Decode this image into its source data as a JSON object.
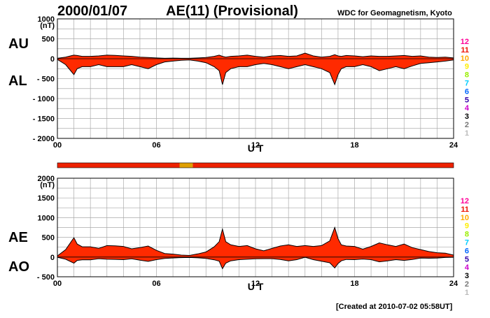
{
  "header": {
    "date": "2000/01/07",
    "title": "AE(11) (Provisional)",
    "source": "WDC for Geomagnetism, Kyoto"
  },
  "footer": {
    "created": "[Created at 2010-07-02 05:58UT]"
  },
  "colors": {
    "fill": "#ff2a00",
    "line": "#000000",
    "grid": "#aaaaaa",
    "bar_main": "#ee2200",
    "bar_alt": "#e0a000"
  },
  "station_legend": [
    {
      "label": "12",
      "color": "#ff0099"
    },
    {
      "label": "11",
      "color": "#ee1100"
    },
    {
      "label": "10",
      "color": "#ffaa00"
    },
    {
      "label": "9",
      "color": "#ffee00"
    },
    {
      "label": "8",
      "color": "#99ee00"
    },
    {
      "label": "7",
      "color": "#00ccff"
    },
    {
      "label": "6",
      "color": "#0066ff"
    },
    {
      "label": "5",
      "color": "#3300aa"
    },
    {
      "label": "4",
      "color": "#cc00cc"
    },
    {
      "label": "3",
      "color": "#000000"
    },
    {
      "label": "2",
      "color": "#777777"
    },
    {
      "label": "1",
      "color": "#bbbbbb"
    }
  ],
  "station_bar": {
    "segments": [
      {
        "from": 0,
        "to": 7.4,
        "stations": 11
      },
      {
        "from": 7.4,
        "to": 8.2,
        "stations": 10
      },
      {
        "from": 8.2,
        "to": 24,
        "stations": 11
      }
    ]
  },
  "chart_data": [
    {
      "type": "area",
      "ylabel": "(nT)",
      "series_labels_left": [
        "AU",
        "AL"
      ],
      "xlabel": "U T",
      "xlim": [
        0,
        24
      ],
      "ylim": [
        -2000,
        1000
      ],
      "yticks": [
        1000,
        500,
        0,
        -500,
        -1000,
        -1500,
        -2000
      ],
      "ytick_labels": [
        "1000",
        "500",
        "0",
        "- 500",
        "- 1000",
        "- 1500",
        "- 2000"
      ],
      "xticks": [
        0,
        6,
        12,
        18,
        24
      ],
      "xtick_labels": [
        "00",
        "06",
        "12",
        "18",
        "24"
      ],
      "x": [
        0,
        0.5,
        0.9,
        1.0,
        1.2,
        1.5,
        2,
        2.5,
        3,
        3.5,
        4,
        4.5,
        5,
        5.5,
        6,
        6.5,
        7,
        7.5,
        8,
        8.5,
        9,
        9.5,
        9.8,
        10,
        10.2,
        10.5,
        11,
        11.5,
        12,
        12.5,
        13,
        13.5,
        14,
        14.5,
        15,
        15.5,
        16,
        16.5,
        16.8,
        17,
        17.2,
        17.5,
        18,
        18.5,
        19,
        19.5,
        20,
        20.5,
        21,
        21.5,
        22,
        22.5,
        23,
        23.5,
        24
      ],
      "series": [
        {
          "name": "AU",
          "values": [
            10,
            40,
            80,
            90,
            80,
            60,
            60,
            70,
            90,
            85,
            70,
            60,
            40,
            30,
            20,
            10,
            15,
            10,
            10,
            20,
            30,
            60,
            90,
            60,
            40,
            60,
            70,
            90,
            60,
            40,
            70,
            80,
            60,
            70,
            140,
            70,
            40,
            60,
            100,
            70,
            60,
            80,
            70,
            50,
            70,
            60,
            60,
            70,
            80,
            60,
            70,
            40,
            30,
            40,
            20
          ]
        },
        {
          "name": "AL",
          "values": [
            -20,
            -150,
            -350,
            -400,
            -250,
            -200,
            -200,
            -150,
            -200,
            -200,
            -200,
            -150,
            -200,
            -250,
            -150,
            -80,
            -60,
            -40,
            -30,
            -60,
            -100,
            -200,
            -300,
            -650,
            -350,
            -250,
            -200,
            -200,
            -150,
            -120,
            -150,
            -200,
            -250,
            -200,
            -150,
            -200,
            -250,
            -350,
            -650,
            -400,
            -250,
            -200,
            -200,
            -150,
            -200,
            -300,
            -250,
            -200,
            -250,
            -180,
            -120,
            -100,
            -80,
            -60,
            -30
          ]
        }
      ]
    },
    {
      "type": "area",
      "ylabel": "(nT)",
      "series_labels_left": [
        "AE",
        "AO"
      ],
      "xlabel": "U T",
      "xlim": [
        0,
        24
      ],
      "ylim": [
        -500,
        2000
      ],
      "yticks": [
        2000,
        1500,
        1000,
        500,
        0,
        -500
      ],
      "ytick_labels": [
        "2000",
        "1500",
        "1000",
        "500",
        "0",
        "- 500"
      ],
      "xticks": [
        0,
        6,
        12,
        18,
        24
      ],
      "xtick_labels": [
        "00",
        "06",
        "12",
        "18",
        "24"
      ],
      "x": [
        0,
        0.5,
        0.9,
        1.0,
        1.2,
        1.5,
        2,
        2.5,
        3,
        3.5,
        4,
        4.5,
        5,
        5.5,
        6,
        6.5,
        7,
        7.5,
        8,
        8.5,
        9,
        9.5,
        9.8,
        10,
        10.2,
        10.5,
        11,
        11.5,
        12,
        12.5,
        13,
        13.5,
        14,
        14.5,
        15,
        15.5,
        16,
        16.5,
        16.8,
        17,
        17.2,
        17.5,
        18,
        18.5,
        19,
        19.5,
        20,
        20.5,
        21,
        21.5,
        22,
        22.5,
        23,
        23.5,
        24
      ],
      "series": [
        {
          "name": "AE",
          "values": [
            30,
            190,
            430,
            490,
            330,
            260,
            260,
            220,
            290,
            285,
            270,
            210,
            240,
            280,
            170,
            90,
            75,
            50,
            40,
            80,
            130,
            260,
            390,
            710,
            390,
            310,
            270,
            290,
            210,
            160,
            220,
            280,
            310,
            270,
            290,
            270,
            290,
            410,
            750,
            470,
            310,
            280,
            270,
            200,
            270,
            360,
            310,
            270,
            330,
            240,
            190,
            140,
            110,
            100,
            50
          ]
        },
        {
          "name": "AO",
          "values": [
            -5,
            -55,
            -135,
            -155,
            -85,
            -70,
            -70,
            -40,
            -55,
            -58,
            -65,
            -45,
            -80,
            -110,
            -65,
            -35,
            -23,
            -15,
            -10,
            -20,
            -35,
            -70,
            -105,
            -295,
            -155,
            -95,
            -65,
            -55,
            -45,
            -40,
            -40,
            -60,
            -95,
            -65,
            -5,
            -65,
            -105,
            -145,
            -275,
            -165,
            -95,
            -60,
            -65,
            -50,
            -65,
            -120,
            -95,
            -65,
            -85,
            -60,
            -25,
            -30,
            -25,
            -10,
            -5
          ]
        }
      ]
    }
  ]
}
